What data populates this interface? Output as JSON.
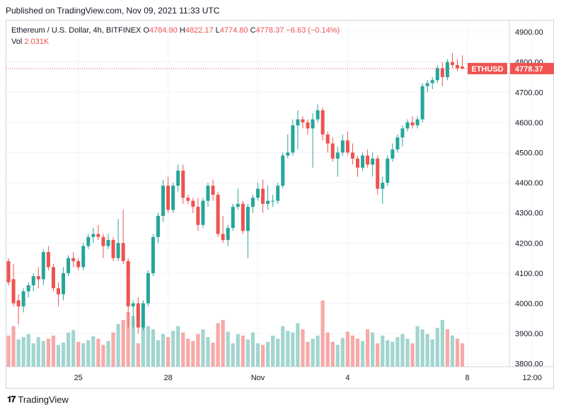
{
  "header": {
    "published": "Published on TradingView.com, Nov 09, 2021 11:33 UTC"
  },
  "legend": {
    "symbol_line": "Ethereum / U.S. Dollar, 4h, BITFINEX",
    "o_label": "O",
    "o_value": "4784.90",
    "h_label": "H",
    "h_value": "4822.17",
    "l_label": "L",
    "l_value": "4774.80",
    "c_label": "C",
    "c_value": "4778.37",
    "change": "−6.63 (−0.14%)",
    "vol_label": "Vol",
    "vol_value": "2.031K"
  },
  "price_tag": {
    "symbol": "ETHUSD",
    "value": "4778.37"
  },
  "footer": {
    "brand": "TradingView"
  },
  "colors": {
    "up": "#26a69a",
    "down": "#ef5350",
    "vol_up": "#a2d5cf",
    "vol_down": "#f7a9a7",
    "grid": "#f0f3fa"
  },
  "chart_data": {
    "type": "candlestick",
    "title": "Ethereum / U.S. Dollar, 4h, BITFINEX",
    "y_ticks": [
      "3800.00",
      "3900.00",
      "4000.00",
      "4100.00",
      "4200.00",
      "4300.00",
      "4400.00",
      "4500.00",
      "4600.00",
      "4700.00",
      "4800.00",
      "4900.00"
    ],
    "ylim": [
      3790,
      4940
    ],
    "x_ticks": [
      {
        "label": "25",
        "index": 14
      },
      {
        "label": "28",
        "index": 32
      },
      {
        "label": "Nov",
        "index": 50
      },
      {
        "label": "4",
        "index": 68
      },
      {
        "label": "8",
        "index": 92
      },
      {
        "label": "12:00",
        "index": 105
      }
    ],
    "last_price": 4778.37,
    "candles": [
      [
        4140,
        4150,
        4060,
        4070
      ],
      [
        4080,
        4130,
        3990,
        4000
      ],
      [
        4010,
        4030,
        3930,
        3990
      ],
      [
        3990,
        4050,
        3970,
        4040
      ],
      [
        4040,
        4070,
        4020,
        4060
      ],
      [
        4060,
        4100,
        4040,
        4090
      ],
      [
        4090,
        4120,
        4050,
        4080
      ],
      [
        4080,
        4180,
        4060,
        4170
      ],
      [
        4170,
        4190,
        4110,
        4120
      ],
      [
        4120,
        4130,
        4040,
        4050
      ],
      [
        4050,
        4070,
        3990,
        4030
      ],
      [
        4030,
        4120,
        4010,
        4100
      ],
      [
        4100,
        4160,
        4090,
        4150
      ],
      [
        4150,
        4170,
        4120,
        4140
      ],
      [
        4140,
        4150,
        4110,
        4120
      ],
      [
        4120,
        4200,
        4110,
        4190
      ],
      [
        4190,
        4230,
        4180,
        4220
      ],
      [
        4220,
        4250,
        4200,
        4230
      ],
      [
        4230,
        4260,
        4210,
        4220
      ],
      [
        4220,
        4230,
        4150,
        4190
      ],
      [
        4190,
        4230,
        4180,
        4210
      ],
      [
        4210,
        4220,
        4140,
        4150
      ],
      [
        4150,
        4280,
        4140,
        4200
      ],
      [
        4200,
        4310,
        4130,
        4140
      ],
      [
        4140,
        4150,
        3920,
        3990
      ],
      [
        3990,
        4010,
        3920,
        4000
      ],
      [
        4000,
        4020,
        3900,
        3920
      ],
      [
        3920,
        4010,
        3910,
        4000
      ],
      [
        4000,
        4110,
        3990,
        4100
      ],
      [
        4100,
        4230,
        4090,
        4220
      ],
      [
        4220,
        4300,
        4200,
        4290
      ],
      [
        4290,
        4410,
        4270,
        4390
      ],
      [
        4390,
        4420,
        4300,
        4310
      ],
      [
        4310,
        4400,
        4300,
        4390
      ],
      [
        4390,
        4460,
        4370,
        4440
      ],
      [
        4440,
        4460,
        4330,
        4350
      ],
      [
        4350,
        4360,
        4330,
        4340
      ],
      [
        4340,
        4350,
        4300,
        4320
      ],
      [
        4320,
        4350,
        4240,
        4260
      ],
      [
        4260,
        4350,
        4250,
        4340
      ],
      [
        4340,
        4400,
        4320,
        4390
      ],
      [
        4390,
        4410,
        4340,
        4360
      ],
      [
        4360,
        4370,
        4220,
        4230
      ],
      [
        4230,
        4290,
        4200,
        4210
      ],
      [
        4210,
        4260,
        4190,
        4250
      ],
      [
        4250,
        4330,
        4240,
        4320
      ],
      [
        4320,
        4380,
        4310,
        4330
      ],
      [
        4330,
        4340,
        4230,
        4240
      ],
      [
        4240,
        4330,
        4150,
        4320
      ],
      [
        4320,
        4360,
        4300,
        4350
      ],
      [
        4350,
        4400,
        4340,
        4380
      ],
      [
        4380,
        4410,
        4300,
        4330
      ],
      [
        4330,
        4390,
        4310,
        4340
      ],
      [
        4340,
        4360,
        4320,
        4340
      ],
      [
        4340,
        4400,
        4330,
        4390
      ],
      [
        4390,
        4500,
        4380,
        4490
      ],
      [
        4490,
        4560,
        4480,
        4500
      ],
      [
        4500,
        4610,
        4490,
        4590
      ],
      [
        4590,
        4640,
        4510,
        4610
      ],
      [
        4610,
        4620,
        4580,
        4600
      ],
      [
        4600,
        4610,
        4560,
        4580
      ],
      [
        4580,
        4630,
        4450,
        4610
      ],
      [
        4610,
        4660,
        4600,
        4640
      ],
      [
        4640,
        4650,
        4540,
        4560
      ],
      [
        4560,
        4570,
        4500,
        4530
      ],
      [
        4530,
        4550,
        4470,
        4480
      ],
      [
        4480,
        4520,
        4420,
        4500
      ],
      [
        4500,
        4560,
        4490,
        4540
      ],
      [
        4540,
        4570,
        4490,
        4500
      ],
      [
        4500,
        4530,
        4460,
        4480
      ],
      [
        4480,
        4490,
        4420,
        4450
      ],
      [
        4450,
        4500,
        4440,
        4490
      ],
      [
        4490,
        4510,
        4450,
        4460
      ],
      [
        4460,
        4500,
        4420,
        4480
      ],
      [
        4480,
        4490,
        4360,
        4380
      ],
      [
        4380,
        4420,
        4330,
        4400
      ],
      [
        4400,
        4490,
        4390,
        4480
      ],
      [
        4480,
        4530,
        4470,
        4510
      ],
      [
        4510,
        4560,
        4500,
        4550
      ],
      [
        4550,
        4590,
        4520,
        4580
      ],
      [
        4580,
        4610,
        4570,
        4600
      ],
      [
        4600,
        4620,
        4580,
        4590
      ],
      [
        4590,
        4620,
        4580,
        4610
      ],
      [
        4610,
        4730,
        4600,
        4720
      ],
      [
        4720,
        4740,
        4700,
        4730
      ],
      [
        4730,
        4750,
        4710,
        4740
      ],
      [
        4740,
        4790,
        4730,
        4780
      ],
      [
        4780,
        4800,
        4720,
        4750
      ],
      [
        4750,
        4810,
        4740,
        4800
      ],
      [
        4800,
        4830,
        4780,
        4790
      ],
      [
        4790,
        4810,
        4770,
        4780
      ],
      [
        4784.9,
        4822.17,
        4774.8,
        4778.37
      ]
    ],
    "volume": [
      40,
      52,
      35,
      38,
      42,
      30,
      38,
      33,
      36,
      40,
      28,
      31,
      44,
      47,
      32,
      30,
      34,
      39,
      36,
      28,
      33,
      44,
      55,
      60,
      70,
      65,
      30,
      58,
      52,
      48,
      34,
      42,
      38,
      46,
      52,
      44,
      36,
      33,
      42,
      48,
      38,
      31,
      56,
      60,
      45,
      30,
      42,
      40,
      35,
      44,
      30,
      28,
      32,
      40,
      36,
      52,
      46,
      44,
      56,
      48,
      32,
      36,
      40,
      85,
      44,
      32,
      28,
      37,
      45,
      40,
      36,
      33,
      48,
      44,
      30,
      40,
      34,
      32,
      38,
      42,
      36,
      30,
      52,
      48,
      42,
      35,
      50,
      60,
      48,
      40,
      36,
      30
    ],
    "volume_down": [
      1,
      1,
      0,
      0,
      0,
      0,
      0,
      0,
      1,
      1,
      0,
      0,
      0,
      0,
      1,
      0,
      0,
      0,
      1,
      1,
      0,
      1,
      0,
      1,
      1,
      0,
      1,
      0,
      0,
      0,
      0,
      0,
      1,
      0,
      0,
      1,
      1,
      1,
      1,
      0,
      0,
      1,
      1,
      1,
      0,
      0,
      0,
      1,
      0,
      0,
      0,
      1,
      0,
      0,
      0,
      0,
      0,
      0,
      0,
      1,
      1,
      0,
      0,
      1,
      1,
      1,
      0,
      0,
      1,
      1,
      1,
      0,
      1,
      0,
      1,
      0,
      0,
      0,
      0,
      0,
      0,
      1,
      0,
      0,
      0,
      0,
      0,
      0,
      1,
      0,
      1,
      1
    ]
  }
}
